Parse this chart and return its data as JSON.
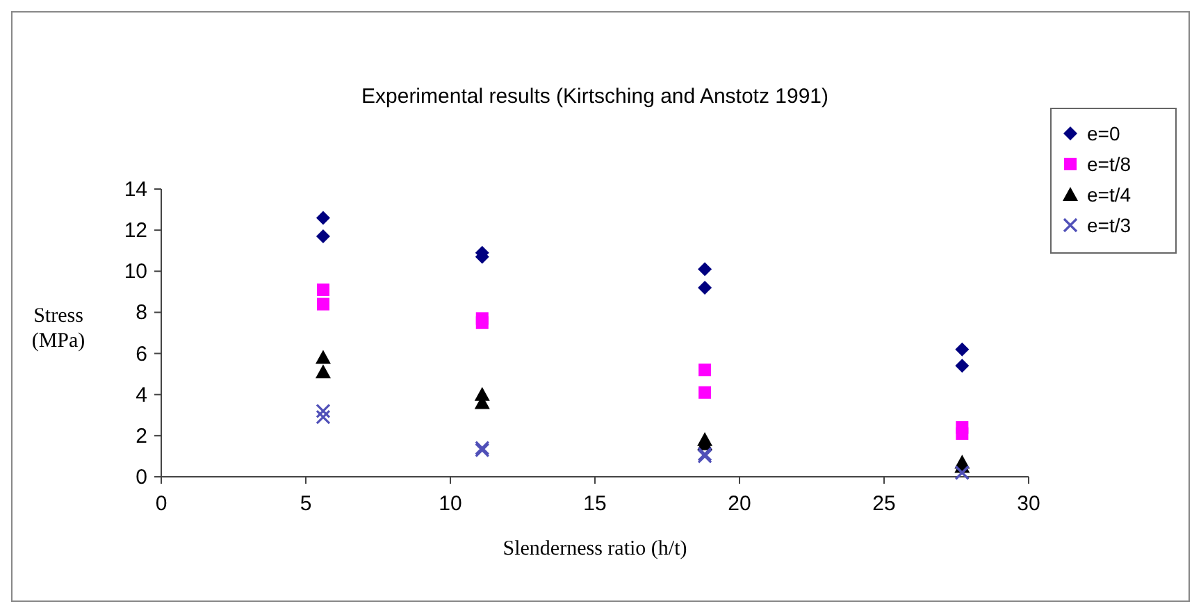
{
  "chart_data": {
    "type": "scatter",
    "title": "Experimental results (Kirtsching and Anstotz 1991)",
    "xlabel": "Slenderness ratio (h/t)",
    "ylabel": "Stress (MPa)",
    "xlim": [
      0,
      30
    ],
    "xticks": [
      0,
      5,
      10,
      15,
      20,
      25,
      30
    ],
    "ylim": [
      0,
      14
    ],
    "yticks": [
      0,
      2,
      4,
      6,
      8,
      10,
      12,
      14
    ],
    "grid": false,
    "legend": "top right",
    "series": [
      {
        "name": "e=0",
        "color": "#000080",
        "marker": "diamond",
        "x": [
          5.6,
          5.6,
          11.1,
          11.1,
          18.8,
          18.8,
          27.7,
          27.7
        ],
        "values": [
          12.6,
          11.7,
          10.9,
          10.7,
          10.1,
          9.2,
          6.2,
          5.4
        ]
      },
      {
        "name": "e=t/8",
        "color": "#ff00ff",
        "marker": "square",
        "x": [
          5.6,
          5.6,
          11.1,
          11.1,
          18.8,
          18.8,
          27.7,
          27.7
        ],
        "values": [
          9.1,
          8.4,
          7.7,
          7.5,
          5.2,
          4.1,
          2.4,
          2.1
        ]
      },
      {
        "name": "e=t/4",
        "color": "#000000",
        "marker": "triangle",
        "x": [
          5.6,
          5.6,
          11.1,
          11.1,
          18.8,
          18.8,
          27.7,
          27.7
        ],
        "values": [
          5.8,
          5.1,
          4.0,
          3.6,
          1.8,
          1.6,
          0.7,
          0.5
        ]
      },
      {
        "name": "e=t/3",
        "color": "#5050b8",
        "marker": "cross",
        "x": [
          5.6,
          5.6,
          11.1,
          11.1,
          18.8,
          18.8,
          27.7,
          27.7
        ],
        "values": [
          3.2,
          2.9,
          1.4,
          1.3,
          1.1,
          1.0,
          0.2,
          0.2
        ]
      }
    ]
  }
}
